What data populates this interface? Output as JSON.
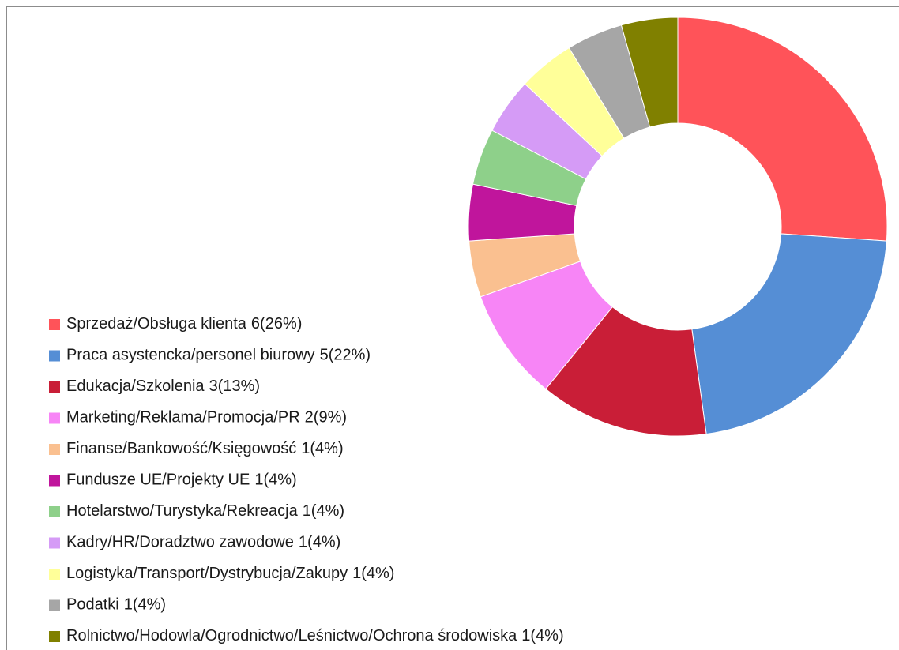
{
  "chart_data": {
    "type": "donut",
    "categories": [
      "Sprzedaż/Obsługa klienta",
      "Praca asystencka/personel biurowy",
      "Edukacja/Szkolenia",
      "Marketing/Reklama/Promocja/PR",
      "Finanse/Bankowość/Księgowość",
      "Fundusze UE/Projekty UE",
      "Hotelarstwo/Turystyka/Rekreacja",
      "Kadry/HR/Doradztwo zawodowe",
      "Logistyka/Transport/Dystrybucja/Zakupy",
      "Podatki",
      "Rolnictwo/Hodowla/Ogrodnictwo/Leśnictwo/Ochrona środowiska"
    ],
    "values": [
      6,
      5,
      3,
      2,
      1,
      1,
      1,
      1,
      1,
      1,
      1
    ],
    "value_labels": [
      "6(26%)",
      "5(22%)",
      "3(13%)",
      "2(9%)",
      "1(4%)",
      "1(4%)",
      "1(4%)",
      "1(4%)",
      "1(4%)",
      "1(4%)",
      "1(4%)"
    ],
    "colors": [
      "#ff5359",
      "#558ed5",
      "#c91e37",
      "#f785f6",
      "#fac090",
      "#c0159c",
      "#8ed08a",
      "#d59bf6",
      "#ffff99",
      "#a6a6a6",
      "#808000"
    ],
    "legend": "bottom-left"
  }
}
